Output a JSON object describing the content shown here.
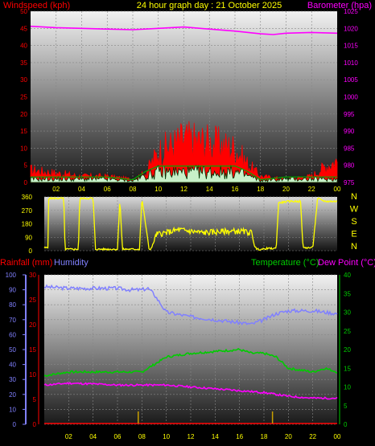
{
  "header": {
    "left": "Windspeed (kph)",
    "center": "24 hour graph day : 21 October 2025",
    "right": "Barometer (hpa)"
  },
  "colors": {
    "background": "#000000",
    "wind": "#ff0000",
    "gust": "#ff0000",
    "pressure": "#ff00ff",
    "direction": "#ffff00",
    "humidity": "#8080ff",
    "temperature": "#00cc00",
    "dewpoint": "#ff00ff",
    "rain": "#ff0000",
    "axis_text": "#ffff00"
  },
  "time_ticks": [
    "02",
    "04",
    "06",
    "08",
    "10",
    "12",
    "14",
    "16",
    "18",
    "20",
    "22",
    "00"
  ],
  "chart_data": [
    {
      "type": "line",
      "name": "wind-and-pressure",
      "ylabel_left": "Windspeed (kph)",
      "ylabel_right": "Barometer (hpa)",
      "ylim_left": [
        0,
        50
      ],
      "yticks_left": [
        "0",
        "5",
        "10",
        "15",
        "20",
        "25",
        "30",
        "35",
        "40",
        "45",
        "50"
      ],
      "ylim_right": [
        975,
        1025
      ],
      "yticks_right": [
        "975",
        "980",
        "985",
        "990",
        "995",
        "1000",
        "1005",
        "1010",
        "1015",
        "1020",
        "1025"
      ],
      "series": [
        {
          "key": "pressure",
          "hours": [
            0,
            2,
            4,
            6,
            8,
            10,
            12,
            14,
            16,
            18,
            19,
            20,
            22,
            24
          ],
          "values": [
            1020.6,
            1020.2,
            1020.0,
            1019.8,
            1019.6,
            1020.0,
            1020.4,
            1019.8,
            1019.2,
            1018.4,
            1018.2,
            1018.6,
            1018.8,
            1018.6
          ]
        },
        {
          "key": "gust",
          "hours": [
            0,
            2,
            4,
            6,
            8,
            9,
            10,
            12,
            14,
            16,
            17,
            18,
            20,
            22,
            23,
            24
          ],
          "values": [
            4,
            3,
            2,
            2,
            1,
            3,
            10,
            14,
            13,
            11,
            6,
            2,
            1,
            2,
            5,
            7
          ]
        },
        {
          "key": "wind",
          "hours": [
            0,
            2,
            4,
            6,
            8,
            9,
            10,
            12,
            14,
            16,
            17,
            18,
            20,
            22,
            24
          ],
          "values": [
            1,
            1,
            1,
            1,
            0.5,
            2,
            3,
            3,
            3,
            3,
            2,
            0.5,
            1,
            1,
            1
          ]
        }
      ]
    },
    {
      "type": "scatter",
      "name": "wind-direction",
      "ylim": [
        0,
        360
      ],
      "yticks": [
        "0",
        "90",
        "180",
        "270",
        "360"
      ],
      "compass": [
        "N",
        "W",
        "S",
        "E",
        "N"
      ],
      "hours": [
        0,
        0.3,
        0.35,
        1.6,
        1.7,
        2.8,
        2.9,
        3.0,
        4.0,
        4.2,
        6.0,
        6.2,
        6.4,
        7.8,
        8.0,
        8.6,
        8.8,
        9.2,
        10,
        11,
        12,
        13,
        14,
        15,
        16,
        17,
        17.2,
        17.4,
        18,
        18.2,
        19.0,
        19.2,
        20.0,
        21.0,
        21.2,
        22.0,
        22.4,
        23.0,
        24
      ],
      "values": [
        20,
        20,
        350,
        350,
        10,
        10,
        340,
        350,
        350,
        10,
        10,
        350,
        10,
        10,
        350,
        5,
        20,
        110,
        120,
        140,
        130,
        120,
        125,
        130,
        130,
        120,
        40,
        10,
        10,
        15,
        15,
        320,
        330,
        330,
        20,
        20,
        350,
        330,
        330
      ]
    },
    {
      "type": "line",
      "name": "temperature-humidity-rain",
      "ylabel_left1": "Rainfall (mm)",
      "ylabel_left2": "Humidity",
      "ylabel_right1": "Temperature (°C)",
      "ylabel_right2": "Dew Point (°C)",
      "humidity_ticks": [
        "0",
        "10",
        "20",
        "30",
        "40",
        "50",
        "60",
        "70",
        "80",
        "90",
        "100"
      ],
      "rain_ticks": [
        "0",
        "5",
        "10",
        "15",
        "20",
        "25",
        "30"
      ],
      "temp_ticks": [
        "0",
        "5",
        "10",
        "15",
        "20",
        "25",
        "30",
        "35",
        "40"
      ],
      "ylim_humidity": [
        0,
        100
      ],
      "ylim_rain": [
        0,
        30
      ],
      "ylim_temp": [
        0,
        40
      ],
      "series": [
        {
          "key": "humidity",
          "hours": [
            0,
            2,
            4,
            6,
            7,
            8,
            8.5,
            9,
            10,
            12,
            14,
            16,
            17,
            18,
            19,
            20,
            22,
            24
          ],
          "values": [
            92,
            91,
            91,
            91,
            90,
            90,
            91,
            87,
            75,
            72,
            70,
            68,
            67,
            70,
            74,
            76,
            76,
            74
          ]
        },
        {
          "key": "temperature",
          "hours": [
            0,
            2,
            4,
            6,
            8,
            9,
            10,
            12,
            14,
            16,
            17,
            18,
            19,
            20,
            22,
            23,
            24
          ],
          "values": [
            13,
            14,
            14,
            14,
            14,
            16,
            18,
            19,
            19.5,
            20,
            19,
            19,
            18,
            15,
            14,
            15,
            14
          ]
        },
        {
          "key": "dewpoint",
          "hours": [
            0,
            2,
            4,
            6,
            8,
            10,
            12,
            14,
            16,
            18,
            20,
            22,
            24
          ],
          "values": [
            10.5,
            11,
            10.8,
            10.5,
            10.5,
            10.5,
            10,
            9.5,
            9,
            8.5,
            7.5,
            7,
            7
          ]
        },
        {
          "key": "rain",
          "hours": [
            0,
            24
          ],
          "values": [
            0,
            0
          ]
        }
      ],
      "rain_markers_hours": [
        7.7,
        18.7
      ]
    }
  ]
}
